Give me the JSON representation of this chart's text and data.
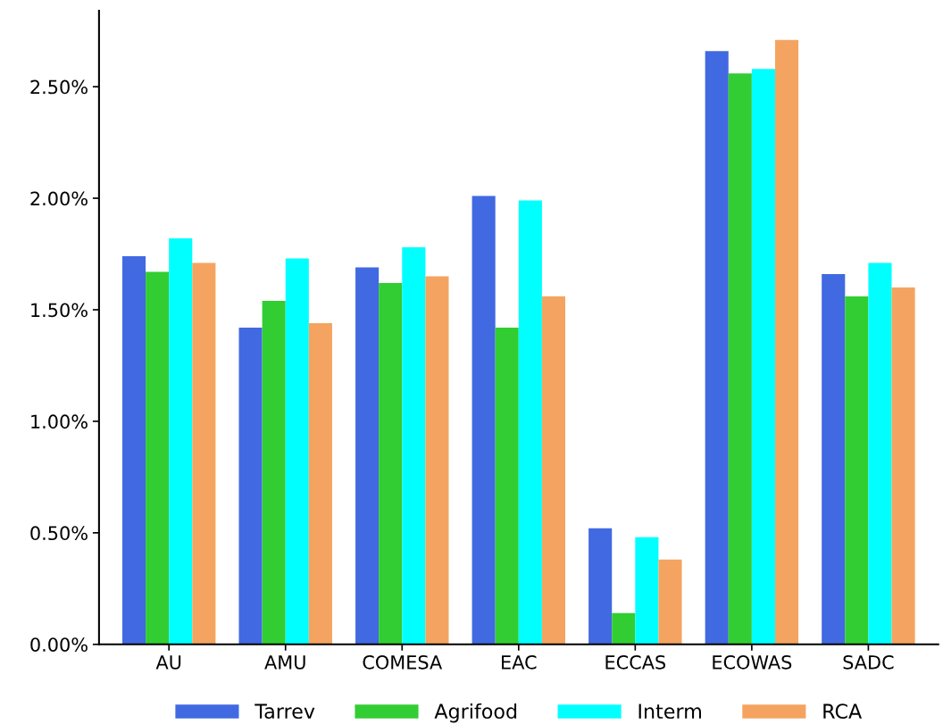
{
  "chart_data": {
    "type": "bar",
    "categories": [
      "AU",
      "AMU",
      "COMESA",
      "EAC",
      "ECCAS",
      "ECOWAS",
      "SADC"
    ],
    "series": [
      {
        "name": "Tarrev",
        "color": "#4169e1",
        "values": [
          1.74,
          1.42,
          1.69,
          2.01,
          0.52,
          2.66,
          1.66
        ]
      },
      {
        "name": "Agrifood",
        "color": "#32cd32",
        "values": [
          1.67,
          1.54,
          1.62,
          1.42,
          0.14,
          2.56,
          1.56
        ]
      },
      {
        "name": "Interm",
        "color": "#00ffff",
        "values": [
          1.82,
          1.73,
          1.78,
          1.99,
          0.48,
          2.58,
          1.71
        ]
      },
      {
        "name": "RCA",
        "color": "#f4a460",
        "values": [
          1.71,
          1.44,
          1.65,
          1.56,
          0.38,
          2.71,
          1.6
        ]
      }
    ],
    "ylim": [
      0,
      2.84
    ],
    "yticks": [
      {
        "value": 0,
        "label": "0.00%"
      },
      {
        "value": 0.5,
        "label": "0.50%"
      },
      {
        "value": 1.0,
        "label": "1.00%"
      },
      {
        "value": 1.5,
        "label": "1.50%"
      },
      {
        "value": 2.0,
        "label": "2.00%"
      },
      {
        "value": 2.5,
        "label": "2.50%"
      }
    ],
    "grid": false,
    "legend": "bottom"
  }
}
